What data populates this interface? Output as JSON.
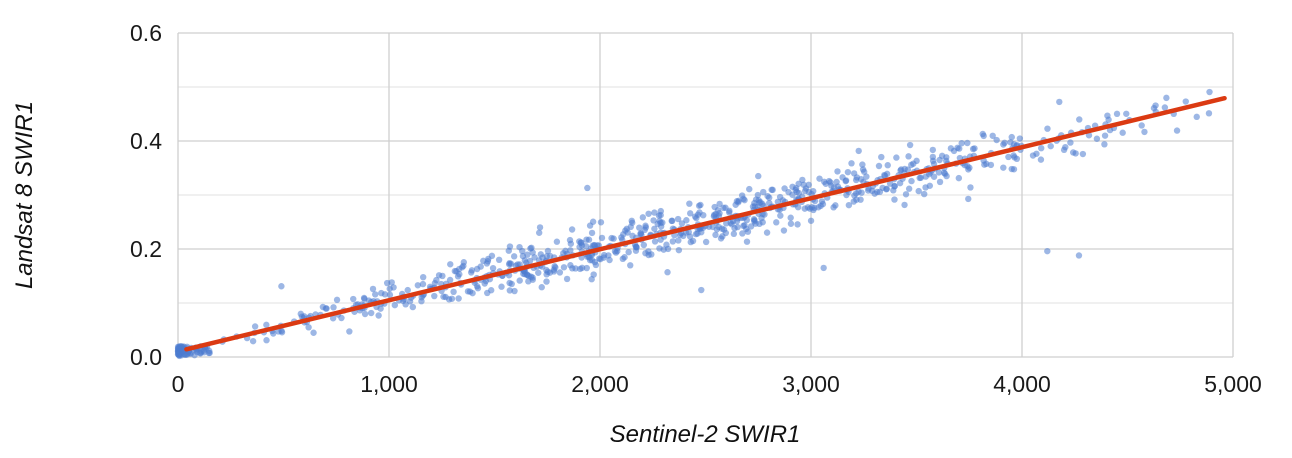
{
  "chart_data": {
    "type": "scatter",
    "title": "",
    "xlabel": "Sentinel-2 SWIR1",
    "ylabel": "Landsat 8 SWIR1",
    "xlim": [
      0,
      5000
    ],
    "ylim": [
      0,
      0.6
    ],
    "x_ticks": [
      0,
      1000,
      2000,
      3000,
      4000,
      5000
    ],
    "x_tick_labels": [
      "0",
      "1,000",
      "2,000",
      "3,000",
      "4,000",
      "5,000"
    ],
    "y_ticks": [
      0,
      0.2,
      0.4,
      0.6
    ],
    "y_tick_labels": [
      "0.0",
      "0.2",
      "0.4",
      "0.6"
    ],
    "y_minor_gridlines": [
      0.1,
      0.3,
      0.5
    ],
    "grid": true,
    "legend_position": "none",
    "background_color": "#ffffff",
    "axis_text_color": "#1a1a1a",
    "major_grid_color": "#cfcfcf",
    "minor_grid_color": "#e2e2e2",
    "series": [
      {
        "type": "scatter",
        "point_color": "#4c7bd0",
        "point_opacity": 0.55,
        "point_radius": 3.2,
        "n_points": 760,
        "distribution": {
          "seed": 20,
          "x_min": 60,
          "x_max": 4960,
          "x_shape": "triangular",
          "slope": 9.45e-05,
          "intercept": 0.0105,
          "noise_sd": 0.021,
          "origin_cluster": {
            "n": 70,
            "x_max": 160,
            "y_min": 0.002,
            "y_max": 0.02
          }
        }
      }
    ],
    "explicit_points": [
      [
        490,
        0.131
      ],
      [
        1940,
        0.313
      ],
      [
        2320,
        0.157
      ],
      [
        2480,
        0.124
      ],
      [
        3060,
        0.165
      ],
      [
        4120,
        0.196
      ],
      [
        4270,
        0.188
      ],
      [
        2750,
        0.335
      ]
    ],
    "trendline": {
      "type": "linear",
      "slope": 9.45e-05,
      "intercept": 0.0105,
      "x_start": 40,
      "x_end": 4960,
      "color": "#db3a12",
      "width": 4.5
    }
  }
}
